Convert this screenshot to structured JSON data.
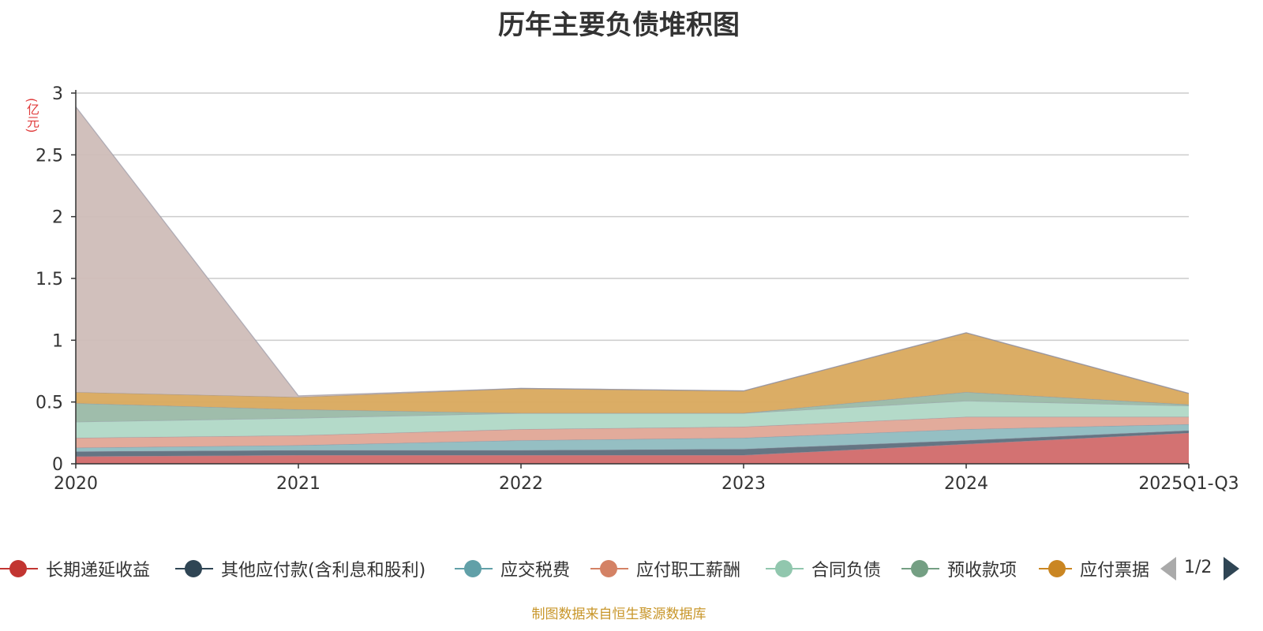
{
  "chart_data": {
    "type": "area",
    "stacked": true,
    "title": "历年主要负债堆积图",
    "unit": "(亿元)",
    "x": [
      "2020",
      "2021",
      "2022",
      "2023",
      "2024",
      "2025Q1-Q3"
    ],
    "ylim": [
      0,
      3
    ],
    "yticks": [
      "0",
      "0.5",
      "1",
      "1.5",
      "2",
      "2.5",
      "3"
    ],
    "grid": true,
    "legend_position": "bottom",
    "series": [
      {
        "name": "长期递延收益",
        "color": "#d16a6a",
        "values": [
          0.06,
          0.07,
          0.07,
          0.07,
          0.16,
          0.25
        ]
      },
      {
        "name": "其他应付款(含利息和股利)",
        "color": "#5d6e7c",
        "values": [
          0.04,
          0.04,
          0.04,
          0.05,
          0.03,
          0.02
        ]
      },
      {
        "name": "应交税费",
        "color": "#8fbcc0",
        "values": [
          0.03,
          0.04,
          0.08,
          0.09,
          0.09,
          0.05
        ]
      },
      {
        "name": "应付职工薪酬",
        "color": "#e0a696",
        "values": [
          0.08,
          0.08,
          0.09,
          0.09,
          0.1,
          0.06
        ]
      },
      {
        "name": "合同负债",
        "color": "#b0d8c6",
        "values": [
          0.13,
          0.14,
          0.13,
          0.11,
          0.13,
          0.09
        ]
      },
      {
        "name": "预收款项",
        "color": "#9ab9a6",
        "values": [
          0.15,
          0.07,
          0.0,
          0.0,
          0.07,
          0.01
        ]
      },
      {
        "name": "应付票据",
        "color": "#d9a95d",
        "values": [
          0.09,
          0.1,
          0.2,
          0.18,
          0.48,
          0.09
        ]
      },
      {
        "name": "",
        "color": "#cfbdb8",
        "values": [
          2.31,
          0.01,
          0.0,
          0.0,
          0.0,
          0.0
        ]
      }
    ]
  },
  "legend": {
    "items": [
      {
        "label": "长期递延收益",
        "color": "#c23531"
      },
      {
        "label": "其他应付款(含利息和股利)",
        "color": "#2f4554"
      },
      {
        "label": "应交税费",
        "color": "#61a0a8"
      },
      {
        "label": "应付职工薪酬",
        "color": "#d48265"
      },
      {
        "label": "合同负债",
        "color": "#91c7ae"
      },
      {
        "label": "预收款项",
        "color": "#749f83"
      },
      {
        "label": "应付票据",
        "color": "#ca8622"
      }
    ],
    "page": "1/2"
  },
  "source": "制图数据来自恒生聚源数据库"
}
